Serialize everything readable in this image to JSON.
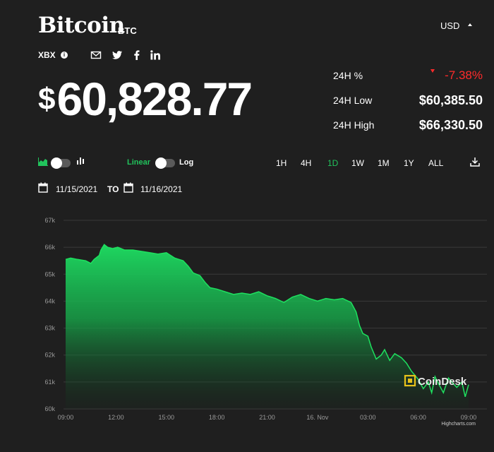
{
  "header": {
    "name": "Bitcoin",
    "ticker": "BTC",
    "currency": "USD",
    "index_label": "XBX",
    "price_symbol": "$",
    "price": "60,828.77"
  },
  "stats": {
    "change_label": "24H %",
    "change_value": "-7.38%",
    "low_label": "24H Low",
    "low_value": "$60,385.50",
    "high_label": "24H High",
    "high_value": "$66,330.50"
  },
  "controls": {
    "linear_label": "Linear",
    "log_label": "Log",
    "ranges": [
      "1H",
      "4H",
      "1D",
      "1W",
      "1M",
      "1Y",
      "ALL"
    ],
    "active_range": "1D",
    "date_from": "11/15/2021",
    "date_sep": "TO",
    "date_to": "11/16/2021"
  },
  "icons": [
    "info-icon",
    "email-icon",
    "twitter-icon",
    "facebook-icon",
    "linkedin-icon",
    "area-chart-icon",
    "candlestick-icon",
    "download-icon",
    "calendar-icon"
  ],
  "colors": {
    "accent_green": "#21c35c",
    "negative_red": "#ff2b2b",
    "background": "#1f1f1f"
  },
  "chart_data": {
    "type": "area",
    "ylim": [
      60,
      67
    ],
    "yticks": [
      "67k",
      "66k",
      "65k",
      "64k",
      "63k",
      "62k",
      "61k",
      "60k"
    ],
    "xticks": [
      "09:00",
      "12:00",
      "15:00",
      "18:00",
      "21:00",
      "16. Nov",
      "03:00",
      "06:00",
      "09:00"
    ],
    "x_hours": [
      0,
      0.3,
      0.7,
      1.2,
      1.5,
      1.7,
      1.9,
      2.0,
      2.1,
      2.3,
      2.5,
      2.8,
      3.1,
      3.5,
      4.0,
      4.5,
      5.0,
      5.5,
      6.0,
      6.5,
      7.0,
      7.3,
      7.6,
      8.0,
      8.3,
      8.6,
      9.0,
      9.5,
      10.0,
      10.5,
      11.0,
      11.5,
      12.0,
      12.5,
      13.0,
      13.5,
      14.0,
      14.5,
      15.0,
      15.5,
      16.0,
      16.5,
      17.0,
      17.3,
      17.5,
      17.7,
      18.0,
      18.2,
      18.5,
      18.8,
      19.0,
      19.3,
      19.6,
      20.0,
      20.3,
      20.6,
      21.0,
      21.3,
      21.6,
      21.8,
      22.0,
      22.2,
      22.5,
      22.8,
      23.0,
      23.3,
      23.6,
      23.8,
      24.0
    ],
    "values": [
      65.55,
      65.6,
      65.55,
      65.5,
      65.4,
      65.55,
      65.65,
      65.7,
      65.9,
      66.1,
      66.0,
      65.95,
      66.0,
      65.9,
      65.9,
      65.85,
      65.8,
      65.75,
      65.8,
      65.6,
      65.5,
      65.3,
      65.05,
      64.95,
      64.7,
      64.5,
      64.45,
      64.35,
      64.25,
      64.3,
      64.25,
      64.35,
      64.2,
      64.1,
      63.95,
      64.15,
      64.25,
      64.1,
      64.0,
      64.1,
      64.05,
      64.1,
      63.95,
      63.6,
      63.1,
      62.8,
      62.7,
      62.3,
      61.85,
      62.0,
      62.2,
      61.8,
      62.05,
      61.9,
      61.7,
      61.4,
      61.1,
      60.75,
      61.0,
      60.6,
      61.2,
      60.95,
      60.6,
      61.15,
      61.0,
      60.8,
      61.0,
      60.45,
      60.9
    ],
    "watermark": "CoinDesk",
    "credit": "Highcharts.com"
  }
}
